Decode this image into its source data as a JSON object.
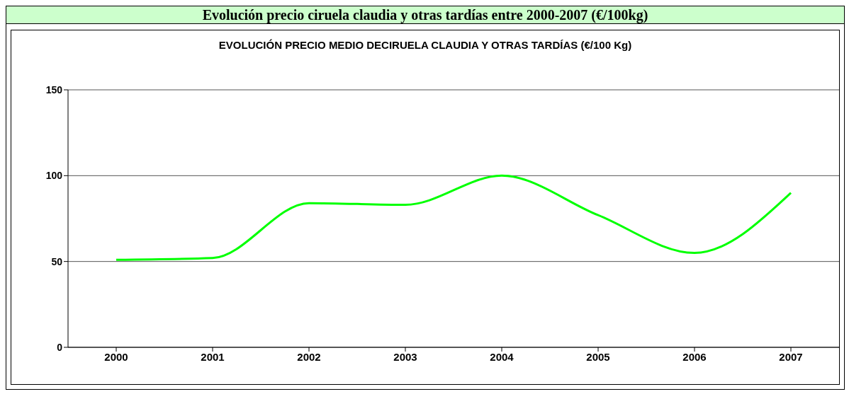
{
  "chart_data": {
    "type": "line",
    "title": "Evolución precio ciruela claudia y otras tardías entre 2000-2007 (€/100kg)",
    "subtitle": "EVOLUCIÓN PRECIO MEDIO DECIRUELA CLAUDIA Y OTRAS TARDÍAS (€/100 Kg)",
    "categories": [
      "2000",
      "2001",
      "2002",
      "2003",
      "2004",
      "2005",
      "2006",
      "2007"
    ],
    "series": [
      {
        "color": "#00ff00",
        "values": [
          51,
          52,
          84,
          83,
          100,
          77,
          55,
          90
        ]
      }
    ],
    "ylim": [
      0,
      150
    ],
    "yticks": [
      0,
      50,
      100,
      150
    ],
    "grid": "y",
    "legend": false,
    "marker": "none",
    "line_style": "solid"
  }
}
